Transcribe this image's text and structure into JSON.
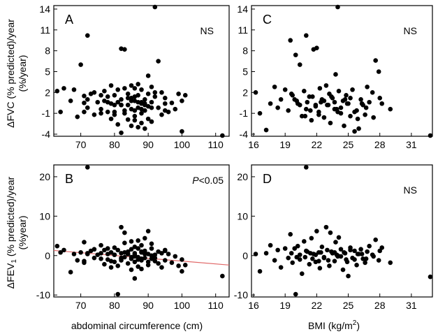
{
  "figure": {
    "y_label_top_line1": "ΔFVC (% predicted)/year",
    "y_label_top_line2": "(%/year)",
    "y_label_bottom_main": "ΔFEV",
    "y_label_bottom_sub": "1",
    "y_label_bottom_rest": " (% predicted)/year",
    "y_label_bottom_line2": "(%year)",
    "x_label_left": "abdominal circumference (cm)",
    "x_label_right_main": "BMI (kg/m",
    "x_label_right_sup": "2",
    "x_label_right_end": ")"
  },
  "colors": {
    "points": "#000000",
    "regression": "#e06666"
  },
  "chart_data": [
    {
      "id": "A",
      "type": "scatter",
      "panel_label": "A",
      "significance": "NS",
      "xlabel": "abdominal circumference (cm)",
      "ylabel": "ΔFVC (% predicted)/year (%/year)",
      "xlim": [
        62,
        114
      ],
      "ylim": [
        -4.3,
        14.5
      ],
      "xticks": [
        70,
        80,
        90,
        100,
        110
      ],
      "yticks": [
        14,
        11,
        8,
        5,
        2,
        -1,
        -4
      ],
      "x": [
        63,
        64,
        65,
        67,
        68,
        69,
        70,
        71,
        71,
        72,
        72,
        73,
        74,
        74,
        75,
        76,
        76,
        77,
        77,
        78,
        78,
        79,
        79,
        79,
        80,
        80,
        80,
        81,
        81,
        81,
        82,
        82,
        82,
        83,
        83,
        83,
        84,
        84,
        84,
        85,
        85,
        85,
        85,
        86,
        86,
        86,
        86,
        87,
        87,
        87,
        87,
        88,
        88,
        88,
        88,
        89,
        89,
        89,
        90,
        90,
        90,
        91,
        91,
        91,
        92,
        92,
        93,
        93,
        94,
        94,
        95,
        95,
        96,
        97,
        98,
        99,
        100,
        100,
        101,
        112,
        72,
        71,
        82,
        83,
        92,
        95,
        87,
        84,
        86,
        89,
        76,
        78,
        80,
        82,
        88,
        90,
        91,
        85,
        86,
        88,
        89
      ],
      "y": [
        2.2,
        -0.8,
        2.6,
        0.8,
        2.4,
        -1.5,
        6.0,
        1.5,
        0.5,
        10.2,
        -0.2,
        1.8,
        2.0,
        -1.2,
        0.6,
        1.6,
        -0.4,
        0.8,
        2.2,
        1.4,
        -0.8,
        3.0,
        0.4,
        -1.8,
        1.6,
        0.2,
        -1.2,
        2.4,
        0.6,
        -2.6,
        8.3,
        1.0,
        -3.8,
        8.2,
        2.6,
        -0.6,
        1.8,
        0.2,
        -1.9,
        3.0,
        1.2,
        -0.4,
        -2.8,
        2.6,
        0.8,
        -1.4,
        -2.0,
        3.2,
        1.6,
        -0.2,
        -3.0,
        2.4,
        0.6,
        -1.0,
        -2.4,
        1.0,
        -0.6,
        -3.2,
        4.4,
        1.8,
        -1.8,
        2.8,
        0.6,
        -2.2,
        14.3,
        1.4,
        6.5,
        -0.2,
        2.0,
        -1.2,
        1.2,
        -0.6,
        -0.8,
        0.5,
        -0.4,
        1.8,
        0.8,
        -3.6,
        1.6,
        -4.2,
        1.0,
        -0.8,
        0.2,
        -1.0,
        2.0,
        0.4,
        0.6,
        1.2,
        -0.6,
        0.4,
        -1.0,
        0.6,
        -0.8,
        0.2,
        0.4,
        0.0,
        -0.2,
        0.8,
        1.4,
        -0.4,
        0.2
      ]
    },
    {
      "id": "B",
      "type": "scatter",
      "panel_label": "B",
      "significance_prefix": "P",
      "significance_rest": "<0.05",
      "xlabel": "abdominal circumference (cm)",
      "ylabel": "ΔFEV1 (% predicted)/year (%year)",
      "xlim": [
        62,
        114
      ],
      "ylim": [
        -10.5,
        23
      ],
      "xticks": [
        70,
        80,
        90,
        100,
        110
      ],
      "yticks": [
        20,
        10,
        0,
        -10
      ],
      "regression": {
        "x": [
          62,
          114
        ],
        "y": [
          1.3,
          -2.4
        ]
      },
      "x": [
        63,
        64,
        65,
        67,
        68,
        69,
        70,
        71,
        71,
        72,
        72,
        73,
        74,
        74,
        75,
        76,
        76,
        77,
        77,
        78,
        78,
        79,
        79,
        79,
        80,
        80,
        80,
        81,
        81,
        81,
        82,
        82,
        82,
        83,
        83,
        83,
        84,
        84,
        84,
        85,
        85,
        85,
        85,
        86,
        86,
        86,
        86,
        87,
        87,
        87,
        87,
        88,
        88,
        88,
        88,
        89,
        89,
        89,
        90,
        90,
        90,
        91,
        91,
        91,
        92,
        92,
        93,
        93,
        94,
        94,
        95,
        95,
        96,
        97,
        98,
        99,
        100,
        100,
        101,
        112,
        72,
        71,
        82,
        83,
        92,
        95,
        87,
        84,
        86,
        89,
        76,
        78,
        80,
        82,
        88,
        90,
        91,
        85,
        86,
        88,
        89
      ],
      "y": [
        2.4,
        0.8,
        1.4,
        -4.2,
        0.4,
        -1.2,
        0.8,
        -1.8,
        3.4,
        22.4,
        0.4,
        1.2,
        -0.6,
        1.6,
        0.2,
        2.6,
        -0.8,
        1.4,
        -2.2,
        0.4,
        1.8,
        -1.4,
        0.8,
        -3.0,
        2.0,
        0.2,
        -1.6,
        -9.8,
        1.4,
        -2.6,
        7.2,
        0.6,
        -1.2,
        3.2,
        -0.4,
        5.8,
        1.0,
        -2.0,
        0.4,
        3.6,
        -0.8,
        1.6,
        -3.6,
        2.2,
        0.2,
        -1.6,
        -5.8,
        1.8,
        -0.4,
        -2.8,
        3.8,
        0.8,
        -1.2,
        2.6,
        -3.4,
        1.2,
        -0.6,
        4.4,
        6.2,
        0.4,
        -2.4,
        1.8,
        -0.8,
        3.0,
        0.2,
        -1.4,
        1.0,
        -2.0,
        0.6,
        -3.0,
        1.4,
        -1.2,
        0.4,
        -1.8,
        -0.2,
        -2.6,
        -4.0,
        -1.0,
        -2.4,
        -5.2,
        0.6,
        -1.4,
        -0.8,
        0.8,
        -0.6,
        1.2,
        -1.0,
        0.4,
        -0.2,
        0.8,
        0.6,
        -1.0,
        0.2,
        -0.6,
        1.0,
        -1.6,
        0.0,
        -0.4,
        0.6,
        -0.8,
        0.4
      ]
    },
    {
      "id": "C",
      "type": "scatter",
      "panel_label": "C",
      "significance": "NS",
      "xlabel": "BMI (kg/m2)",
      "ylabel": "ΔFVC (% predicted)/year (%/year)",
      "xlim": [
        15.8,
        33
      ],
      "ylim": [
        -4.3,
        14.5
      ],
      "xticks": [
        16,
        19,
        22,
        25,
        28,
        31
      ],
      "yticks": [
        14,
        11,
        8,
        5,
        2,
        -1,
        -4
      ],
      "x": [
        16.2,
        16.6,
        17.2,
        17.6,
        18.0,
        18.3,
        18.6,
        19.0,
        19.3,
        19.5,
        19.7,
        20.0,
        20.2,
        20.4,
        20.6,
        20.8,
        21.0,
        21.1,
        21.3,
        21.5,
        21.7,
        21.9,
        22.0,
        22.2,
        22.3,
        22.5,
        22.7,
        22.9,
        23.0,
        23.2,
        23.3,
        23.5,
        23.7,
        23.8,
        24.0,
        24.1,
        24.3,
        24.5,
        24.6,
        24.8,
        25.0,
        25.2,
        25.4,
        25.6,
        25.8,
        26.0,
        26.2,
        26.4,
        26.6,
        26.8,
        27.0,
        27.3,
        27.6,
        27.9,
        28.2,
        29.0,
        32.8,
        19.6,
        20.1,
        21.0,
        21.6,
        21.9,
        22.2,
        23.7,
        24.3,
        25.2,
        20.4,
        21.4,
        22.7,
        23.4,
        24.0,
        24.9,
        25.9,
        26.7,
        19.9,
        20.9,
        22.4,
        23.1,
        23.9,
        24.7,
        25.6,
        26.3,
        27.4,
        28.0
      ],
      "y": [
        2.0,
        -1.0,
        -3.4,
        0.4,
        2.8,
        -0.2,
        1.0,
        2.4,
        -0.6,
        9.5,
        1.6,
        7.4,
        0.4,
        6.0,
        -1.4,
        2.2,
        10.2,
        0.6,
        1.4,
        -2.0,
        8.2,
        0.2,
        8.4,
        -0.8,
        2.6,
        1.0,
        -1.6,
        3.0,
        0.2,
        1.8,
        -2.4,
        1.2,
        -0.4,
        4.6,
        14.3,
        2.2,
        -1.0,
        0.8,
        -2.8,
        1.6,
        0.4,
        -1.4,
        2.4,
        -3.6,
        -0.6,
        -3.2,
        1.0,
        0.2,
        -1.2,
        2.8,
        0.6,
        2.0,
        6.6,
        5.0,
        0.4,
        -0.4,
        -4.2,
        1.8,
        0.8,
        -0.4,
        1.4,
        0.0,
        -1.2,
        0.6,
        -0.2,
        1.2,
        0.2,
        -0.6,
        0.8,
        1.4,
        -0.8,
        0.4,
        -1.8,
        -0.2,
        1.0,
        -1.4,
        0.6,
        0.2,
        -0.4,
        1.0,
        -0.8,
        0.4,
        -1.6,
        1.2
      ]
    },
    {
      "id": "D",
      "type": "scatter",
      "panel_label": "D",
      "significance": "NS",
      "xlabel": "BMI (kg/m2)",
      "ylabel": "ΔFEV1 (% predicted)/year (%year)",
      "xlim": [
        15.8,
        33
      ],
      "ylim": [
        -10.5,
        23
      ],
      "xticks": [
        16,
        19,
        22,
        25,
        28,
        31
      ],
      "yticks": [
        20,
        10,
        0,
        -10
      ],
      "x": [
        16.2,
        16.6,
        17.2,
        17.6,
        18.0,
        18.3,
        18.6,
        19.0,
        19.3,
        19.5,
        19.7,
        20.0,
        20.2,
        20.4,
        20.6,
        20.8,
        21.0,
        21.1,
        21.3,
        21.5,
        21.7,
        21.9,
        22.0,
        22.2,
        22.3,
        22.5,
        22.7,
        22.9,
        23.0,
        23.2,
        23.3,
        23.5,
        23.7,
        23.8,
        24.0,
        24.1,
        24.3,
        24.5,
        24.6,
        24.8,
        25.0,
        25.2,
        25.4,
        25.6,
        25.8,
        26.0,
        26.2,
        26.4,
        26.6,
        26.8,
        27.0,
        27.3,
        27.6,
        27.9,
        28.2,
        29.0,
        32.8,
        19.6,
        20.1,
        21.0,
        21.6,
        21.9,
        22.2,
        23.7,
        24.3,
        25.2,
        20.4,
        21.4,
        22.7,
        23.4,
        24.0,
        24.9,
        25.9,
        26.7,
        19.9,
        20.9,
        22.4,
        23.1,
        23.9,
        24.7,
        25.6,
        26.3,
        27.4,
        28.0
      ],
      "y": [
        0.4,
        -4.0,
        0.6,
        2.6,
        -1.2,
        1.4,
        -3.0,
        1.8,
        -0.6,
        5.4,
        -1.8,
        -9.8,
        2.4,
        0.2,
        -4.6,
        3.6,
        22.4,
        1.0,
        -2.2,
        4.4,
        0.4,
        -1.6,
        6.2,
        0.8,
        -3.2,
        2.2,
        -0.4,
        7.2,
        1.4,
        -2.6,
        5.8,
        0.6,
        -1.4,
        3.4,
        -0.2,
        4.6,
        1.6,
        -3.6,
        0.8,
        -1.0,
        -5.2,
        2.0,
        -0.6,
        1.2,
        -2.4,
        0.4,
        1.6,
        -0.8,
        -1.8,
        1.0,
        2.4,
        0.2,
        4.0,
        -1.2,
        2.0,
        -1.8,
        -5.4,
        0.6,
        -0.4,
        1.2,
        -0.8,
        0.2,
        -1.4,
        0.8,
        -0.2,
        1.4,
        -1.0,
        0.6,
        -0.6,
        1.0,
        0.0,
        -1.6,
        0.4,
        -0.8,
        1.8,
        -0.4,
        0.8,
        -1.2,
        0.2,
        0.6,
        -1.0,
        0.4,
        -0.2,
        1.2
      ]
    }
  ]
}
